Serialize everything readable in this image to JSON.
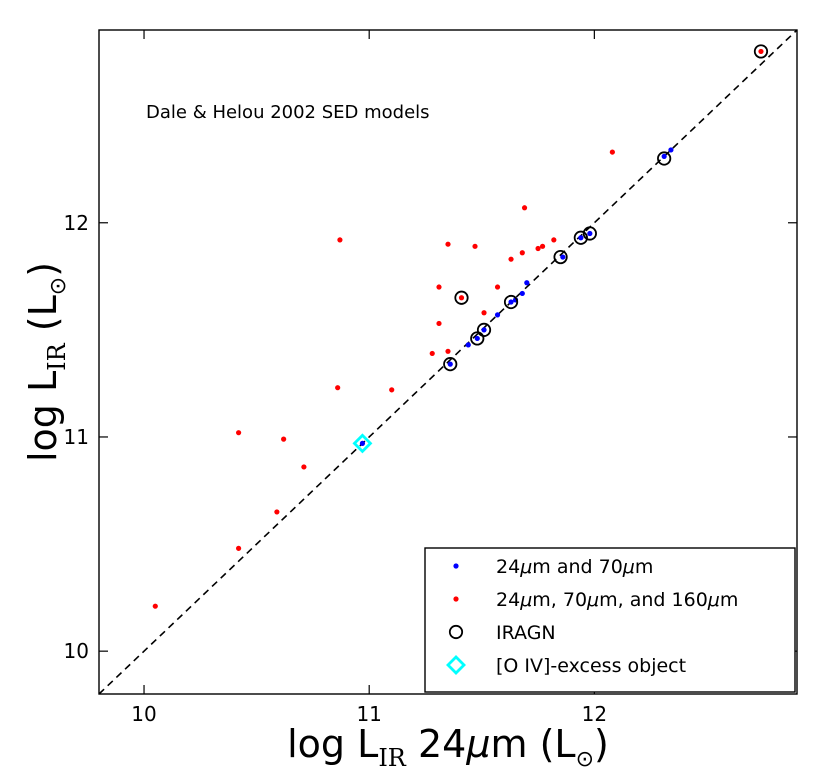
{
  "chart_data": {
    "type": "scatter",
    "title": "",
    "annotation": "Dale & Helou 2002 SED models",
    "xlabel": {
      "prefix": "log L",
      "sub": "IR",
      "suffix": " 24",
      "mu": "μ",
      "unit_open": "m  (L",
      "sun": "⊙",
      "close": ")"
    },
    "ylabel": {
      "prefix": "log L",
      "sub": "IR",
      "unit_open": "  (L",
      "sun": "⊙",
      "close": ")"
    },
    "xlim": [
      9.8,
      12.9
    ],
    "ylim": [
      9.8,
      12.9
    ],
    "xticks": [
      "10",
      "11",
      "12"
    ],
    "yticks": [
      "10",
      "11",
      "12"
    ],
    "one_to_one_line": true,
    "legend_position": "lower right",
    "series": [
      {
        "name": "24μm and 70μm",
        "label_html": "24<tspan font-style='italic'>μ</tspan>m and 70<tspan font-style='italic'>μ</tspan>m",
        "color": "#0000ff",
        "marker": "dot",
        "points": [
          [
            10.97,
            10.97
          ],
          [
            11.36,
            11.34
          ],
          [
            11.44,
            11.43
          ],
          [
            11.48,
            11.46
          ],
          [
            11.51,
            11.5
          ],
          [
            11.57,
            11.57
          ],
          [
            11.63,
            11.63
          ],
          [
            11.65,
            11.64
          ],
          [
            11.68,
            11.67
          ],
          [
            11.7,
            11.72
          ],
          [
            11.86,
            11.84
          ],
          [
            11.94,
            11.93
          ],
          [
            11.98,
            11.95
          ],
          [
            12.31,
            12.31
          ],
          [
            12.34,
            12.34
          ]
        ]
      },
      {
        "name": "24μm, 70μm, and 160μm",
        "color": "#ff0000",
        "marker": "dot",
        "points": [
          [
            10.05,
            10.21
          ],
          [
            10.42,
            10.48
          ],
          [
            10.42,
            11.02
          ],
          [
            10.59,
            10.65
          ],
          [
            10.62,
            10.99
          ],
          [
            10.71,
            10.86
          ],
          [
            10.86,
            11.23
          ],
          [
            10.87,
            11.92
          ],
          [
            11.1,
            11.22
          ],
          [
            11.28,
            11.39
          ],
          [
            11.31,
            11.53
          ],
          [
            11.31,
            11.7
          ],
          [
            11.35,
            11.4
          ],
          [
            11.35,
            11.9
          ],
          [
            11.41,
            11.65
          ],
          [
            11.47,
            11.89
          ],
          [
            11.51,
            11.58
          ],
          [
            11.57,
            11.7
          ],
          [
            11.63,
            11.83
          ],
          [
            11.68,
            11.86
          ],
          [
            11.69,
            12.07
          ],
          [
            11.75,
            11.88
          ],
          [
            11.77,
            11.89
          ],
          [
            11.82,
            11.92
          ],
          [
            12.08,
            12.33
          ],
          [
            12.74,
            12.8
          ]
        ]
      },
      {
        "name": "IRAGN",
        "color": "#000000",
        "marker": "open-circle",
        "points": [
          [
            11.36,
            11.34
          ],
          [
            11.41,
            11.65
          ],
          [
            11.48,
            11.46
          ],
          [
            11.51,
            11.5
          ],
          [
            11.63,
            11.63
          ],
          [
            11.85,
            11.84
          ],
          [
            11.94,
            11.93
          ],
          [
            11.98,
            11.95
          ],
          [
            12.31,
            12.3
          ],
          [
            12.74,
            12.8
          ]
        ]
      },
      {
        "name": "[O IV]-excess object",
        "color": "#00ffff",
        "marker": "open-diamond",
        "points": [
          [
            10.97,
            10.97
          ]
        ]
      }
    ]
  }
}
